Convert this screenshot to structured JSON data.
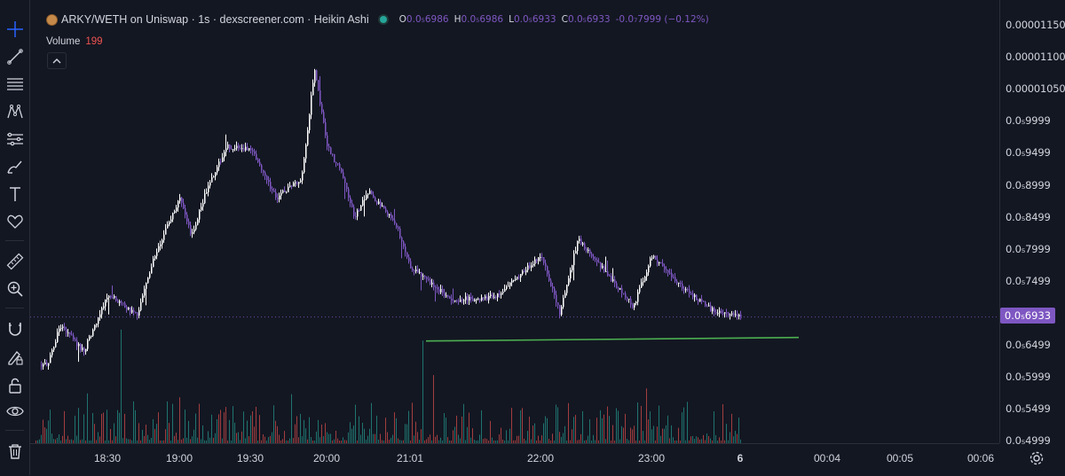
{
  "legend": {
    "symbol": "ARKY/WETH on Uniswap · 1s · dexscreener.com · Heikin Ashi",
    "ohlc": [
      {
        "key": "O",
        "value": "0.0₅6986"
      },
      {
        "key": "H",
        "value": "0.0₅6986"
      },
      {
        "key": "L",
        "value": "0.0₅6933"
      },
      {
        "key": "C",
        "value": "0.0₅6933"
      }
    ],
    "change": "-0.0₇7999 (−0.12%)"
  },
  "volume_legend": {
    "label": "Volume",
    "value": "199"
  },
  "price_axis": {
    "ticks": [
      "0.00001150",
      "0.00001100",
      "0.00001050",
      "0.0₅9999",
      "0.0₅9499",
      "0.0₅8999",
      "0.0₅8499",
      "0.0₅7999",
      "0.0₅7499",
      "0.0₅6999",
      "0.0₅6499",
      "0.0₅5999",
      "0.0₅5499",
      "0.0₅4999"
    ],
    "last_price": "0.0₅6933"
  },
  "time_axis": {
    "ticks": [
      "18:30",
      "19:00",
      "19:30",
      "20:00",
      "21:01",
      "22:00",
      "23:00",
      "6",
      "00:04",
      "00:05",
      "00:06"
    ]
  },
  "toolbar": {
    "tools": [
      "crosshair-icon",
      "trend-line-icon",
      "fib-retracement-icon",
      "pattern-icon",
      "prediction-icon",
      "brush-icon",
      "text-icon",
      "heart-icon",
      "ruler-icon",
      "zoom-in-icon",
      "magnet-icon",
      "lock-drawing-icon",
      "lock-icon",
      "eye-icon",
      "trash-icon"
    ]
  },
  "colors": {
    "background": "#131722",
    "candle_up": "#ffffff",
    "candle_down": "#7e57c2",
    "volume_up": "#26a69a",
    "volume_down": "#ef5350",
    "support_line": "#4caf50",
    "accent": "#2962ff"
  },
  "chart_data": {
    "type": "candlestick",
    "style": "Heikin Ashi",
    "ylim": [
      4.999e-06,
      1.15e-05
    ],
    "last_price": 6.933e-06,
    "x": [
      "18:30",
      "19:00",
      "19:30",
      "20:00",
      "21:01",
      "22:00",
      "23:00",
      "6"
    ],
    "price_series": [
      {
        "t": "18:05",
        "v": 6.2e-06
      },
      {
        "t": "18:10",
        "v": 6.8e-06
      },
      {
        "t": "18:20",
        "v": 6.4e-06
      },
      {
        "t": "18:30",
        "v": 7.3e-06
      },
      {
        "t": "18:42",
        "v": 6.95e-06
      },
      {
        "t": "18:50",
        "v": 7.95e-06
      },
      {
        "t": "19:00",
        "v": 8.8e-06
      },
      {
        "t": "19:05",
        "v": 8.2e-06
      },
      {
        "t": "19:12",
        "v": 9e-06
      },
      {
        "t": "19:20",
        "v": 9.6e-06
      },
      {
        "t": "19:30",
        "v": 9.55e-06
      },
      {
        "t": "19:40",
        "v": 8.8e-06
      },
      {
        "t": "19:50",
        "v": 9.1e-06
      },
      {
        "t": "19:55",
        "v": 1.08e-05
      },
      {
        "t": "20:00",
        "v": 9.6e-06
      },
      {
        "t": "20:10",
        "v": 9.2e-06
      },
      {
        "t": "20:20",
        "v": 8.5e-06
      },
      {
        "t": "20:30",
        "v": 8.9e-06
      },
      {
        "t": "20:50",
        "v": 8.4e-06
      },
      {
        "t": "21:01",
        "v": 7.7e-06
      },
      {
        "t": "21:20",
        "v": 7.2e-06
      },
      {
        "t": "21:40",
        "v": 7.25e-06
      },
      {
        "t": "22:00",
        "v": 7.9e-06
      },
      {
        "t": "22:10",
        "v": 7e-06
      },
      {
        "t": "22:20",
        "v": 8.15e-06
      },
      {
        "t": "22:40",
        "v": 7.45e-06
      },
      {
        "t": "22:50",
        "v": 7.1e-06
      },
      {
        "t": "23:00",
        "v": 7.9e-06
      },
      {
        "t": "23:20",
        "v": 7.4e-06
      },
      {
        "t": "23:40",
        "v": 7.05e-06
      },
      {
        "t": "23:50",
        "v": 7e-06
      },
      {
        "t": "6",
        "v": 6.93e-06
      }
    ],
    "annotations": [
      {
        "type": "horizontal-support-line",
        "from": "21:01",
        "to": "00:04",
        "price": 6.6e-06
      }
    ],
    "volume": {
      "latest": 199
    }
  }
}
